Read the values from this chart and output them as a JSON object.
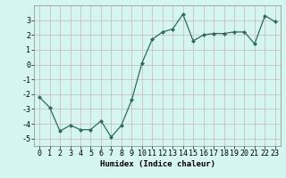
{
  "x": [
    0,
    1,
    2,
    3,
    4,
    5,
    6,
    7,
    8,
    9,
    10,
    11,
    12,
    13,
    14,
    15,
    16,
    17,
    18,
    19,
    20,
    21,
    22,
    23
  ],
  "y": [
    -2.2,
    -2.9,
    -4.5,
    -4.1,
    -4.4,
    -4.4,
    -3.8,
    -4.9,
    -4.1,
    -2.4,
    0.1,
    1.7,
    2.2,
    2.4,
    3.4,
    1.6,
    2.0,
    2.1,
    2.1,
    2.2,
    2.2,
    1.4,
    3.3,
    2.9
  ],
  "line_color": "#2e6b5e",
  "marker": "D",
  "bg_color": "#d4f5f0",
  "grid_major_color": "#c8b8b8",
  "grid_minor_color": "#ddd0d0",
  "xlabel": "Humidex (Indice chaleur)",
  "xlim": [
    -0.5,
    23.5
  ],
  "ylim": [
    -5.5,
    4.0
  ],
  "yticks": [
    -5,
    -4,
    -3,
    -2,
    -1,
    0,
    1,
    2,
    3
  ],
  "xticks": [
    0,
    1,
    2,
    3,
    4,
    5,
    6,
    7,
    8,
    9,
    10,
    11,
    12,
    13,
    14,
    15,
    16,
    17,
    18,
    19,
    20,
    21,
    22,
    23
  ],
  "label_fontsize": 6.5,
  "tick_fontsize": 6.0
}
